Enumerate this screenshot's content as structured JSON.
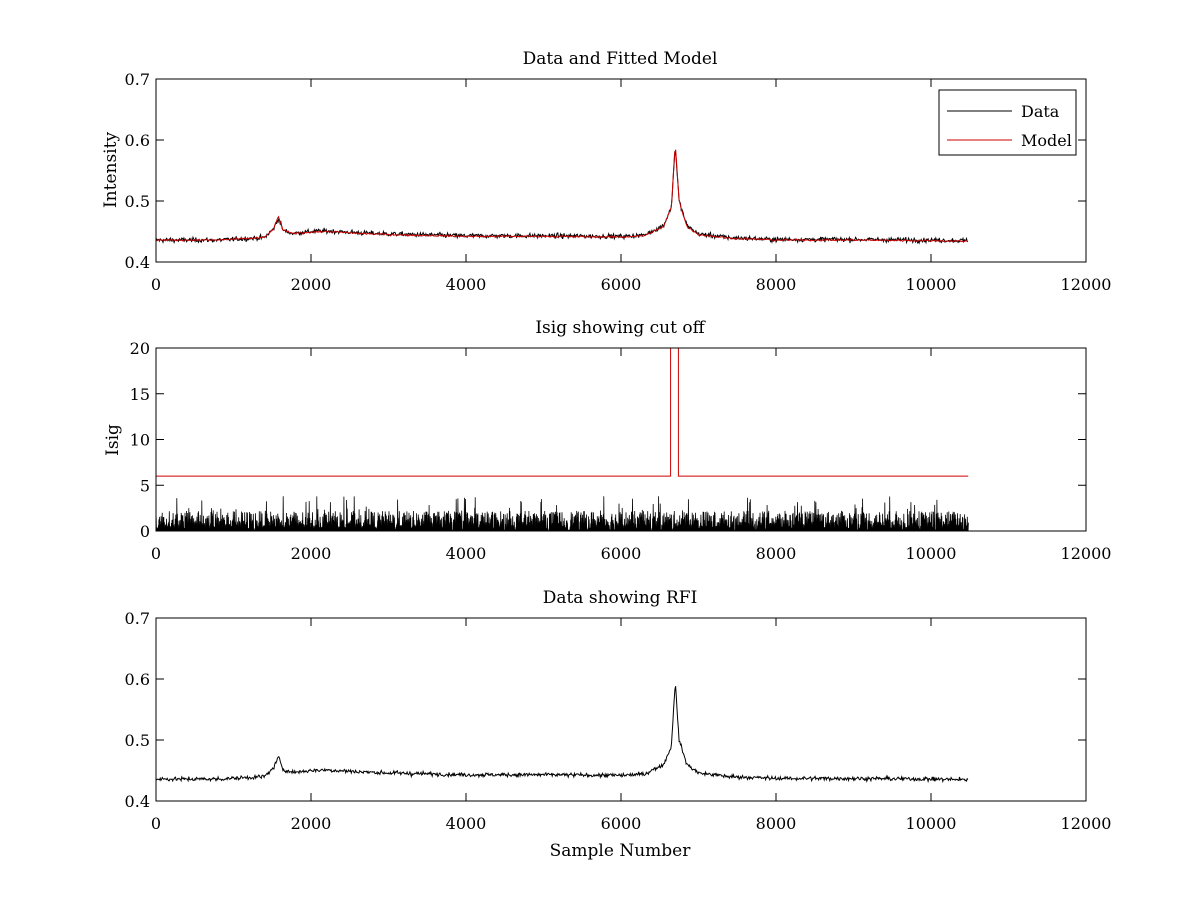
{
  "figure": {
    "colors": {
      "data": "#000000",
      "model": "#cc0000",
      "axes": "#000000",
      "background": "#ffffff"
    }
  },
  "chart_data": [
    {
      "type": "line",
      "title": "Data and Fitted Model",
      "xlabel": "",
      "ylabel": "Intensity",
      "xlim": [
        0,
        12000
      ],
      "ylim": [
        0.4,
        0.7
      ],
      "xticks": [
        0,
        2000,
        4000,
        6000,
        8000,
        10000,
        12000
      ],
      "yticks": [
        0.4,
        0.5,
        0.6,
        0.7
      ],
      "xtick_labels": [
        "0",
        "2000",
        "4000",
        "6000",
        "8000",
        "10000",
        "12000"
      ],
      "ytick_labels": [
        "0.4",
        "0.5",
        "0.6",
        "0.7"
      ],
      "legend": {
        "position": "top-right",
        "entries": [
          "Data",
          "Model"
        ]
      },
      "series": [
        {
          "name": "Data",
          "color": "#000000",
          "style": "noisy",
          "noise": 0.008,
          "x": [
            0,
            800,
            1400,
            1520,
            1580,
            1640,
            1750,
            2000,
            2200,
            2600,
            3000,
            4000,
            5000,
            6000,
            6300,
            6550,
            6650,
            6700,
            6750,
            6850,
            7000,
            7400,
            8000,
            9000,
            10000,
            10480
          ],
          "y": [
            0.436,
            0.436,
            0.44,
            0.455,
            0.472,
            0.452,
            0.447,
            0.45,
            0.451,
            0.448,
            0.446,
            0.443,
            0.443,
            0.442,
            0.444,
            0.46,
            0.49,
            0.59,
            0.5,
            0.46,
            0.446,
            0.44,
            0.437,
            0.437,
            0.436,
            0.435
          ]
        },
        {
          "name": "Model",
          "color": "#cc0000",
          "style": "smooth",
          "x": [
            0,
            800,
            1400,
            1520,
            1580,
            1640,
            1750,
            2000,
            2200,
            2600,
            3000,
            4000,
            5000,
            6000,
            6300,
            6550,
            6650,
            6700,
            6750,
            6850,
            7000,
            7400,
            8000,
            9000,
            10000,
            10480
          ],
          "y": [
            0.436,
            0.436,
            0.44,
            0.455,
            0.475,
            0.452,
            0.447,
            0.449,
            0.45,
            0.447,
            0.445,
            0.442,
            0.442,
            0.441,
            0.443,
            0.458,
            0.49,
            0.595,
            0.5,
            0.458,
            0.445,
            0.439,
            0.436,
            0.436,
            0.435,
            0.434
          ]
        }
      ]
    },
    {
      "type": "line",
      "title": "Isig showing cut off",
      "xlabel": "",
      "ylabel": "Isig",
      "xlim": [
        0,
        12000
      ],
      "ylim": [
        0,
        20
      ],
      "xticks": [
        0,
        2000,
        4000,
        6000,
        8000,
        10000,
        12000
      ],
      "yticks": [
        0,
        5,
        10,
        15,
        20
      ],
      "xtick_labels": [
        "0",
        "2000",
        "4000",
        "6000",
        "8000",
        "10000",
        "12000"
      ],
      "ytick_labels": [
        "0",
        "5",
        "10",
        "15",
        "20"
      ],
      "series": [
        {
          "name": "Isig",
          "color": "#000000",
          "style": "spiky",
          "x_range": [
            0,
            10480
          ],
          "baseline": 0,
          "typical_max": 2.2,
          "peak_max": 3.8
        },
        {
          "name": "Cut off",
          "color": "#cc0000",
          "style": "step",
          "x": [
            0,
            6640,
            6640,
            6740,
            6740,
            10480
          ],
          "y": [
            6,
            6,
            20,
            20,
            6,
            6
          ]
        }
      ]
    },
    {
      "type": "line",
      "title": "Data showing RFI",
      "xlabel": "Sample Number",
      "ylabel": "",
      "xlim": [
        0,
        12000
      ],
      "ylim": [
        0.4,
        0.7
      ],
      "xticks": [
        0,
        2000,
        4000,
        6000,
        8000,
        10000,
        12000
      ],
      "yticks": [
        0.4,
        0.5,
        0.6,
        0.7
      ],
      "xtick_labels": [
        "0",
        "2000",
        "4000",
        "6000",
        "8000",
        "10000",
        "12000"
      ],
      "ytick_labels": [
        "0.4",
        "0.5",
        "0.6",
        "0.7"
      ],
      "series": [
        {
          "name": "Data",
          "color": "#000000",
          "style": "noisy",
          "noise": 0.007,
          "x": [
            0,
            800,
            1400,
            1520,
            1580,
            1640,
            1750,
            2000,
            2200,
            2600,
            3000,
            4000,
            5000,
            6000,
            6300,
            6550,
            6650,
            6700,
            6750,
            6850,
            7000,
            7400,
            8000,
            9000,
            10000,
            10480
          ],
          "y": [
            0.436,
            0.436,
            0.44,
            0.455,
            0.472,
            0.452,
            0.447,
            0.45,
            0.451,
            0.448,
            0.446,
            0.443,
            0.443,
            0.442,
            0.444,
            0.46,
            0.49,
            0.595,
            0.5,
            0.46,
            0.446,
            0.44,
            0.437,
            0.437,
            0.436,
            0.435
          ]
        }
      ]
    }
  ]
}
